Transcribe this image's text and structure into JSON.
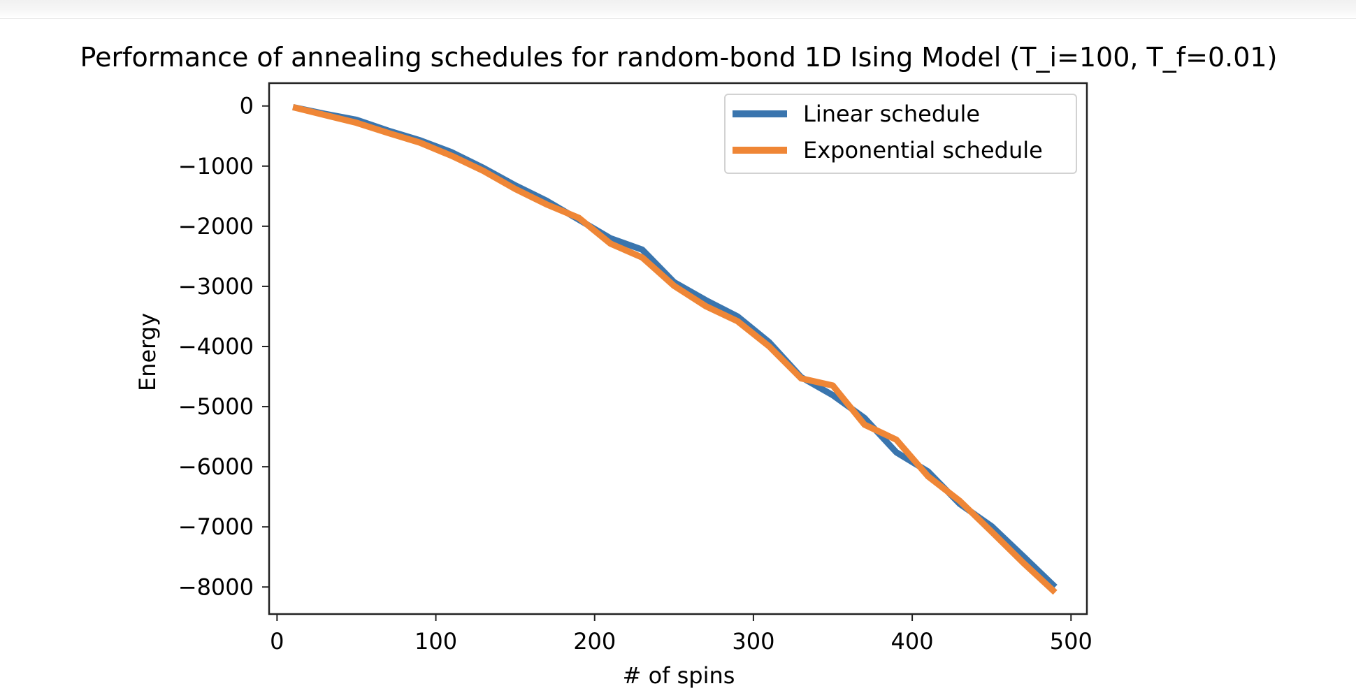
{
  "chart_data": {
    "type": "line",
    "title": "Performance of annealing schedules for random-bond 1D Ising Model (T_i=100, T_f=0.01)",
    "xlabel": "# of spins",
    "ylabel": "Energy",
    "xlim": [
      -5,
      510
    ],
    "ylim": [
      -8450,
      380
    ],
    "xticks": [
      0,
      100,
      200,
      300,
      400,
      500
    ],
    "yticks": [
      0,
      -1000,
      -2000,
      -3000,
      -4000,
      -5000,
      -6000,
      -7000,
      -8000
    ],
    "xtick_labels": [
      "0",
      "100",
      "200",
      "300",
      "400",
      "500"
    ],
    "ytick_labels": [
      "0",
      "−1000",
      "−2000",
      "−3000",
      "−4000",
      "−5000",
      "−6000",
      "−7000",
      "−8000"
    ],
    "grid": false,
    "legend_position": "top-right",
    "x": [
      10,
      30,
      50,
      70,
      90,
      110,
      130,
      150,
      170,
      190,
      210,
      230,
      250,
      270,
      290,
      310,
      330,
      350,
      370,
      390,
      410,
      430,
      450,
      470,
      490
    ],
    "series": [
      {
        "name": "Linear schedule",
        "color": "#3a75ae",
        "values": [
          -20,
          -130,
          -230,
          -410,
          -570,
          -770,
          -1030,
          -1320,
          -1580,
          -1890,
          -2200,
          -2390,
          -2930,
          -3230,
          -3500,
          -3930,
          -4510,
          -4810,
          -5190,
          -5760,
          -6080,
          -6620,
          -6990,
          -7490,
          -8000
        ]
      },
      {
        "name": "Exponential schedule",
        "color": "#ef8636",
        "values": [
          -20,
          -150,
          -280,
          -450,
          -610,
          -830,
          -1080,
          -1380,
          -1640,
          -1860,
          -2290,
          -2520,
          -2990,
          -3330,
          -3580,
          -4000,
          -4530,
          -4650,
          -5300,
          -5550,
          -6160,
          -6570,
          -7080,
          -7600,
          -8090
        ]
      }
    ]
  }
}
